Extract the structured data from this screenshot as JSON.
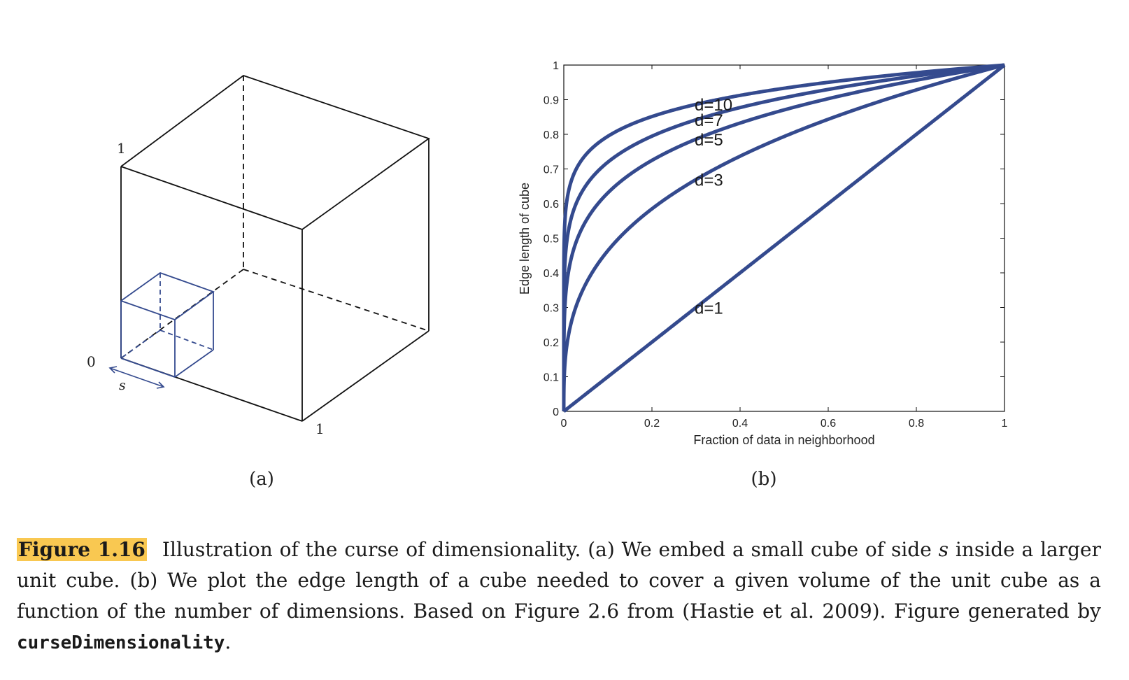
{
  "panel_a": {
    "labels": {
      "top": "1",
      "origin": "0",
      "side": "s",
      "right": "1"
    },
    "sublabel": "(a)"
  },
  "panel_b": {
    "sublabel": "(b)"
  },
  "chart_data": {
    "type": "line",
    "title": "",
    "xlabel": "Fraction of data in neighborhood",
    "ylabel": "Edge length of cube",
    "xlim": [
      0,
      1
    ],
    "ylim": [
      0,
      1
    ],
    "xticks": [
      "0",
      "0.2",
      "0.4",
      "0.6",
      "0.8",
      "1"
    ],
    "yticks": [
      "0",
      "0.1",
      "0.2",
      "0.3",
      "0.4",
      "0.5",
      "0.6",
      "0.7",
      "0.8",
      "0.9",
      "1"
    ],
    "grid": false,
    "series_color": "#344a8e",
    "series": [
      {
        "label": "d=1",
        "d": 1
      },
      {
        "label": "d=3",
        "d": 3
      },
      {
        "label": "d=5",
        "d": 5
      },
      {
        "label": "d=7",
        "d": 7
      },
      {
        "label": "d=10",
        "d": 10
      }
    ]
  },
  "caption": {
    "figure_number": "Figure 1.16",
    "part1": "Illustration of the curse of dimensionality. (a) We embed a small cube of side ",
    "var_s": "s",
    "part2": " inside a larger unit cube.  (b) We plot the edge length of a cube needed to cover a given volume of the unit cube as a function of the number of dimensions. Based on Figure 2.6 from (Hastie et al. 2009). Figure generated by ",
    "code": "curseDimensionality",
    "end": "."
  }
}
